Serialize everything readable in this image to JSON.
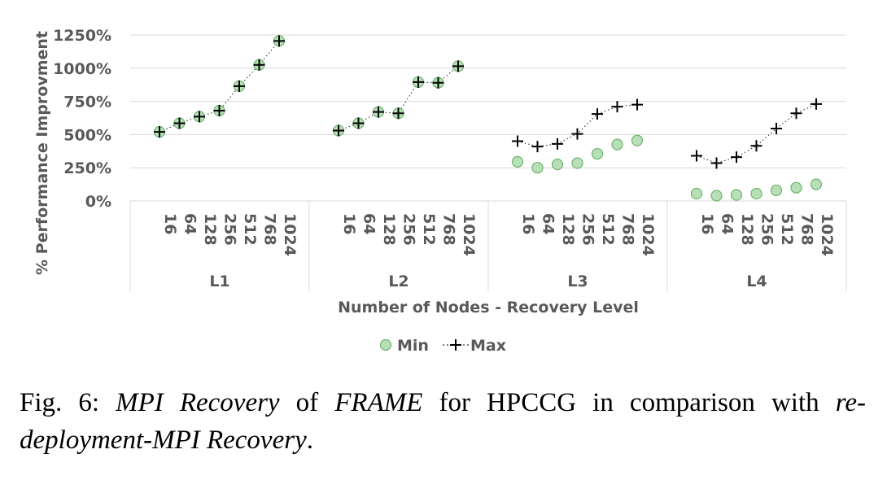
{
  "chart_data": {
    "type": "scatter",
    "ylabel": "% Performance Improvment",
    "xlabel": "Number of Nodes - Recovery Level",
    "ylim": [
      0,
      1250
    ],
    "yticks": [
      0,
      250,
      500,
      750,
      1000,
      1250
    ],
    "ytick_labels": [
      "0%",
      "250%",
      "500%",
      "750%",
      "1000%",
      "1250%"
    ],
    "groups": [
      "L1",
      "L2",
      "L3",
      "L4"
    ],
    "nodes": [
      "16",
      "64",
      "128",
      "256",
      "512",
      "768",
      "1024"
    ],
    "series": [
      {
        "name": "Min",
        "marker": "circle",
        "color": "#b7e0b7",
        "edge": "#6fb36f",
        "values": [
          [
            520,
            585,
            635,
            680,
            865,
            1025,
            1205
          ],
          [
            530,
            585,
            670,
            660,
            895,
            890,
            1015
          ],
          [
            295,
            250,
            275,
            285,
            355,
            425,
            455
          ],
          [
            55,
            40,
            45,
            55,
            80,
            100,
            125
          ]
        ]
      },
      {
        "name": "Max",
        "marker": "plus",
        "color": "#000000",
        "values": [
          [
            520,
            585,
            635,
            680,
            865,
            1025,
            1205
          ],
          [
            530,
            585,
            670,
            660,
            895,
            890,
            1015
          ],
          [
            450,
            410,
            430,
            505,
            655,
            710,
            725
          ],
          [
            340,
            285,
            330,
            415,
            545,
            660,
            730
          ]
        ]
      }
    ]
  },
  "caption": {
    "prefix": "Fig. 6: ",
    "em1": "MPI Recovery",
    "mid1": " of ",
    "em2": "FRAME",
    "mid2": " for HPCCG in comparison with ",
    "em3": "re-deployment-MPI Recovery",
    "suffix": "."
  }
}
